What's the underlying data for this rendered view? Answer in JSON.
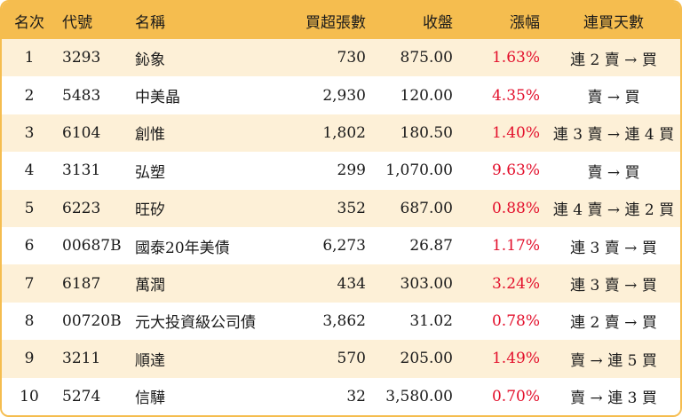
{
  "columns": {
    "rank": "名次",
    "code": "代號",
    "name": "名稱",
    "net_buy": "買超張數",
    "close": "收盤",
    "change": "漲幅",
    "streak": "連買天數"
  },
  "accent_color": "#f5bd4f",
  "stripe_color": "#fdf0d7",
  "change_color": "#e3102c",
  "rows": [
    {
      "rank": "1",
      "code": "3293",
      "name": "鈊象",
      "net_buy": "730",
      "close": "875.00",
      "change": "1.63%",
      "streak": "連 2 賣 → 買"
    },
    {
      "rank": "2",
      "code": "5483",
      "name": "中美晶",
      "net_buy": "2,930",
      "close": "120.00",
      "change": "4.35%",
      "streak": "賣 → 買"
    },
    {
      "rank": "3",
      "code": "6104",
      "name": "創惟",
      "net_buy": "1,802",
      "close": "180.50",
      "change": "1.40%",
      "streak": "連 3 賣 → 連 4 買"
    },
    {
      "rank": "4",
      "code": "3131",
      "name": "弘塑",
      "net_buy": "299",
      "close": "1,070.00",
      "change": "9.63%",
      "streak": "賣 → 買"
    },
    {
      "rank": "5",
      "code": "6223",
      "name": "旺矽",
      "net_buy": "352",
      "close": "687.00",
      "change": "0.88%",
      "streak": "連 4 賣 → 連 2 買"
    },
    {
      "rank": "6",
      "code": "00687B",
      "name": "國泰20年美債",
      "net_buy": "6,273",
      "close": "26.87",
      "change": "1.17%",
      "streak": "連 3 賣 → 買"
    },
    {
      "rank": "7",
      "code": "6187",
      "name": "萬潤",
      "net_buy": "434",
      "close": "303.00",
      "change": "3.24%",
      "streak": "連 3 賣 → 買"
    },
    {
      "rank": "8",
      "code": "00720B",
      "name": "元大投資級公司債",
      "net_buy": "3,862",
      "close": "31.02",
      "change": "0.78%",
      "streak": "連 2 賣 → 買"
    },
    {
      "rank": "9",
      "code": "3211",
      "name": "順達",
      "net_buy": "570",
      "close": "205.00",
      "change": "1.49%",
      "streak": "賣 → 連 5 買"
    },
    {
      "rank": "10",
      "code": "5274",
      "name": "信驊",
      "net_buy": "32",
      "close": "3,580.00",
      "change": "0.70%",
      "streak": "賣 → 連 3 買"
    }
  ]
}
